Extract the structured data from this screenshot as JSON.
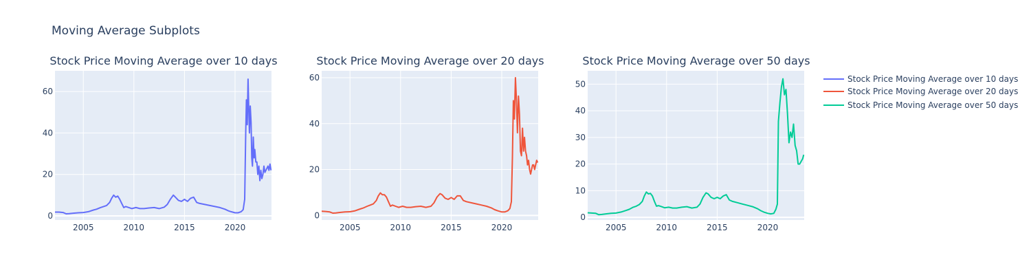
{
  "figure": {
    "title": "Moving Average Subplots",
    "background": "#ffffff",
    "plot_background": "#e5ecf6",
    "grid_color": "#ffffff",
    "font_color": "#2a3f5f"
  },
  "legend": {
    "placement": "right",
    "entries": [
      {
        "label": "Stock Price Moving Average over 10 days",
        "color": "#636efa"
      },
      {
        "label": "Stock Price Moving Average over 20 days",
        "color": "#ef553b"
      },
      {
        "label": "Stock Price Moving Average over 50 days",
        "color": "#00cc96"
      }
    ]
  },
  "chart_data": [
    {
      "type": "line",
      "title": "Stock Price Moving Average over 10 days",
      "xlabel": "",
      "ylabel": "",
      "xlim": [
        2002.2,
        2023.6
      ],
      "ylim": [
        -2,
        70
      ],
      "xticks": [
        2005,
        2010,
        2015,
        2020
      ],
      "yticks": [
        0,
        20,
        40,
        60
      ],
      "grid": true,
      "series": [
        {
          "name": "Stock Price Moving Average over 10 days",
          "color": "#636efa",
          "x": [
            2002.2,
            2002.6,
            2003.0,
            2003.3,
            2003.6,
            2004.0,
            2004.5,
            2005.0,
            2005.5,
            2006.0,
            2006.3,
            2006.7,
            2007.0,
            2007.3,
            2007.6,
            2007.8,
            2008.0,
            2008.2,
            2008.4,
            2008.6,
            2008.8,
            2009.0,
            2009.2,
            2009.5,
            2009.8,
            2010.2,
            2010.6,
            2011.0,
            2011.5,
            2012.0,
            2012.5,
            2013.0,
            2013.3,
            2013.6,
            2013.9,
            2014.1,
            2014.4,
            2014.7,
            2015.0,
            2015.3,
            2015.6,
            2015.9,
            2016.2,
            2016.5,
            2017.0,
            2017.5,
            2018.0,
            2018.5,
            2019.0,
            2019.3,
            2019.6,
            2020.0,
            2020.3,
            2020.6,
            2020.8,
            2020.95,
            2021.05,
            2021.12,
            2021.2,
            2021.28,
            2021.35,
            2021.42,
            2021.5,
            2021.58,
            2021.65,
            2021.72,
            2021.8,
            2021.88,
            2021.95,
            2022.05,
            2022.15,
            2022.25,
            2022.35,
            2022.45,
            2022.55,
            2022.65,
            2022.75,
            2022.85,
            2022.95,
            2023.05,
            2023.15,
            2023.25,
            2023.35,
            2023.45,
            2023.55
          ],
          "y": [
            1.8,
            1.8,
            1.6,
            1.0,
            1.1,
            1.3,
            1.5,
            1.6,
            2.0,
            2.8,
            3.2,
            4.0,
            4.5,
            5.0,
            6.5,
            8.5,
            10.0,
            9.0,
            9.5,
            8.0,
            6.0,
            4.0,
            4.5,
            4.0,
            3.5,
            4.0,
            3.5,
            3.5,
            3.8,
            4.0,
            3.5,
            4.2,
            5.5,
            8.0,
            10.0,
            9.0,
            7.5,
            7.0,
            8.0,
            7.0,
            8.5,
            9.0,
            6.5,
            6.0,
            5.5,
            5.0,
            4.5,
            4.0,
            3.2,
            2.5,
            2.0,
            1.5,
            1.5,
            2.0,
            3.0,
            8.0,
            40.0,
            56.0,
            44.0,
            66.0,
            52.0,
            40.0,
            53.0,
            45.0,
            28.0,
            24.0,
            38.0,
            28.0,
            32.0,
            26.0,
            26.0,
            20.0,
            24.0,
            17.0,
            22.0,
            18.0,
            20.0,
            24.0,
            21.0,
            22.0,
            23.0,
            24.0,
            22.0,
            25.0,
            22.0
          ]
        }
      ]
    },
    {
      "type": "line",
      "title": "Stock Price Moving Average over 20 days",
      "xlabel": "",
      "ylabel": "",
      "xlim": [
        2002.2,
        2023.6
      ],
      "ylim": [
        -2,
        63
      ],
      "xticks": [
        2005,
        2010,
        2015,
        2020
      ],
      "yticks": [
        0,
        20,
        40,
        60
      ],
      "grid": true,
      "series": [
        {
          "name": "Stock Price Moving Average over 20 days",
          "color": "#ef553b",
          "x": [
            2002.2,
            2002.6,
            2003.0,
            2003.3,
            2003.6,
            2004.0,
            2004.5,
            2005.0,
            2005.5,
            2006.0,
            2006.3,
            2006.7,
            2007.0,
            2007.3,
            2007.6,
            2007.8,
            2008.0,
            2008.2,
            2008.4,
            2008.6,
            2008.8,
            2009.0,
            2009.2,
            2009.5,
            2009.8,
            2010.2,
            2010.6,
            2011.0,
            2011.5,
            2012.0,
            2012.5,
            2013.0,
            2013.3,
            2013.6,
            2013.9,
            2014.1,
            2014.4,
            2014.7,
            2015.0,
            2015.3,
            2015.6,
            2015.9,
            2016.2,
            2016.5,
            2017.0,
            2017.5,
            2018.0,
            2018.5,
            2019.0,
            2019.3,
            2019.6,
            2020.0,
            2020.3,
            2020.6,
            2020.8,
            2020.95,
            2021.05,
            2021.15,
            2021.25,
            2021.35,
            2021.45,
            2021.55,
            2021.65,
            2021.75,
            2021.85,
            2021.95,
            2022.05,
            2022.15,
            2022.25,
            2022.35,
            2022.45,
            2022.55,
            2022.65,
            2022.75,
            2022.85,
            2022.95,
            2023.05,
            2023.15,
            2023.25,
            2023.35,
            2023.45,
            2023.55
          ],
          "y": [
            1.8,
            1.7,
            1.5,
            1.0,
            1.1,
            1.3,
            1.5,
            1.6,
            2.0,
            2.8,
            3.2,
            4.0,
            4.5,
            5.0,
            6.5,
            8.5,
            9.8,
            9.0,
            9.0,
            8.0,
            6.0,
            4.0,
            4.5,
            4.0,
            3.5,
            4.0,
            3.5,
            3.5,
            3.8,
            4.0,
            3.5,
            4.0,
            5.5,
            8.0,
            9.5,
            9.0,
            7.5,
            7.0,
            7.8,
            7.0,
            8.5,
            8.5,
            6.5,
            6.0,
            5.5,
            5.0,
            4.5,
            4.0,
            3.2,
            2.5,
            2.0,
            1.5,
            1.5,
            2.0,
            3.0,
            6.0,
            25.0,
            50.0,
            42.0,
            60.0,
            50.0,
            36.0,
            52.0,
            44.0,
            28.0,
            26.0,
            38.0,
            28.0,
            34.0,
            28.0,
            26.0,
            22.0,
            24.0,
            20.0,
            18.0,
            20.0,
            22.0,
            22.0,
            20.0,
            22.0,
            24.0,
            23.0
          ]
        }
      ]
    },
    {
      "type": "line",
      "title": "Stock Price Moving Average over 50 days",
      "xlabel": "",
      "ylabel": "",
      "xlim": [
        2002.2,
        2023.6
      ],
      "ylim": [
        -1,
        55
      ],
      "xticks": [
        2005,
        2010,
        2015,
        2020
      ],
      "yticks": [
        0,
        10,
        20,
        30,
        40,
        50
      ],
      "grid": true,
      "series": [
        {
          "name": "Stock Price Moving Average over 50 days",
          "color": "#00cc96",
          "x": [
            2002.2,
            2002.6,
            2003.0,
            2003.3,
            2003.6,
            2004.0,
            2004.5,
            2005.0,
            2005.5,
            2006.0,
            2006.3,
            2006.7,
            2007.0,
            2007.3,
            2007.6,
            2007.8,
            2008.0,
            2008.2,
            2008.4,
            2008.6,
            2008.8,
            2009.0,
            2009.2,
            2009.5,
            2009.8,
            2010.2,
            2010.6,
            2011.0,
            2011.5,
            2012.0,
            2012.5,
            2013.0,
            2013.3,
            2013.6,
            2013.9,
            2014.1,
            2014.4,
            2014.7,
            2015.0,
            2015.3,
            2015.6,
            2015.9,
            2016.2,
            2016.5,
            2017.0,
            2017.5,
            2018.0,
            2018.5,
            2019.0,
            2019.3,
            2019.6,
            2020.0,
            2020.3,
            2020.6,
            2020.8,
            2020.95,
            2021.05,
            2021.2,
            2021.35,
            2021.5,
            2021.65,
            2021.8,
            2021.95,
            2022.1,
            2022.25,
            2022.4,
            2022.55,
            2022.7,
            2022.85,
            2023.0,
            2023.15,
            2023.3,
            2023.45,
            2023.55
          ],
          "y": [
            1.7,
            1.6,
            1.5,
            1.0,
            1.1,
            1.3,
            1.5,
            1.6,
            2.0,
            2.6,
            3.0,
            3.8,
            4.2,
            4.8,
            6.0,
            8.0,
            9.5,
            8.8,
            9.0,
            8.0,
            6.0,
            4.2,
            4.4,
            4.0,
            3.6,
            3.8,
            3.5,
            3.5,
            3.8,
            4.0,
            3.5,
            3.8,
            5.0,
            7.5,
            9.2,
            8.8,
            7.5,
            7.0,
            7.5,
            7.0,
            8.0,
            8.5,
            6.5,
            6.0,
            5.5,
            5.0,
            4.5,
            4.0,
            3.2,
            2.5,
            2.0,
            1.5,
            1.3,
            1.5,
            3.0,
            5.0,
            36.0,
            43.0,
            49.0,
            52.0,
            46.0,
            48.0,
            39.0,
            28.0,
            32.0,
            30.0,
            35.0,
            27.0,
            25.0,
            20.0,
            20.0,
            21.0,
            22.0,
            23.5
          ]
        }
      ]
    }
  ]
}
